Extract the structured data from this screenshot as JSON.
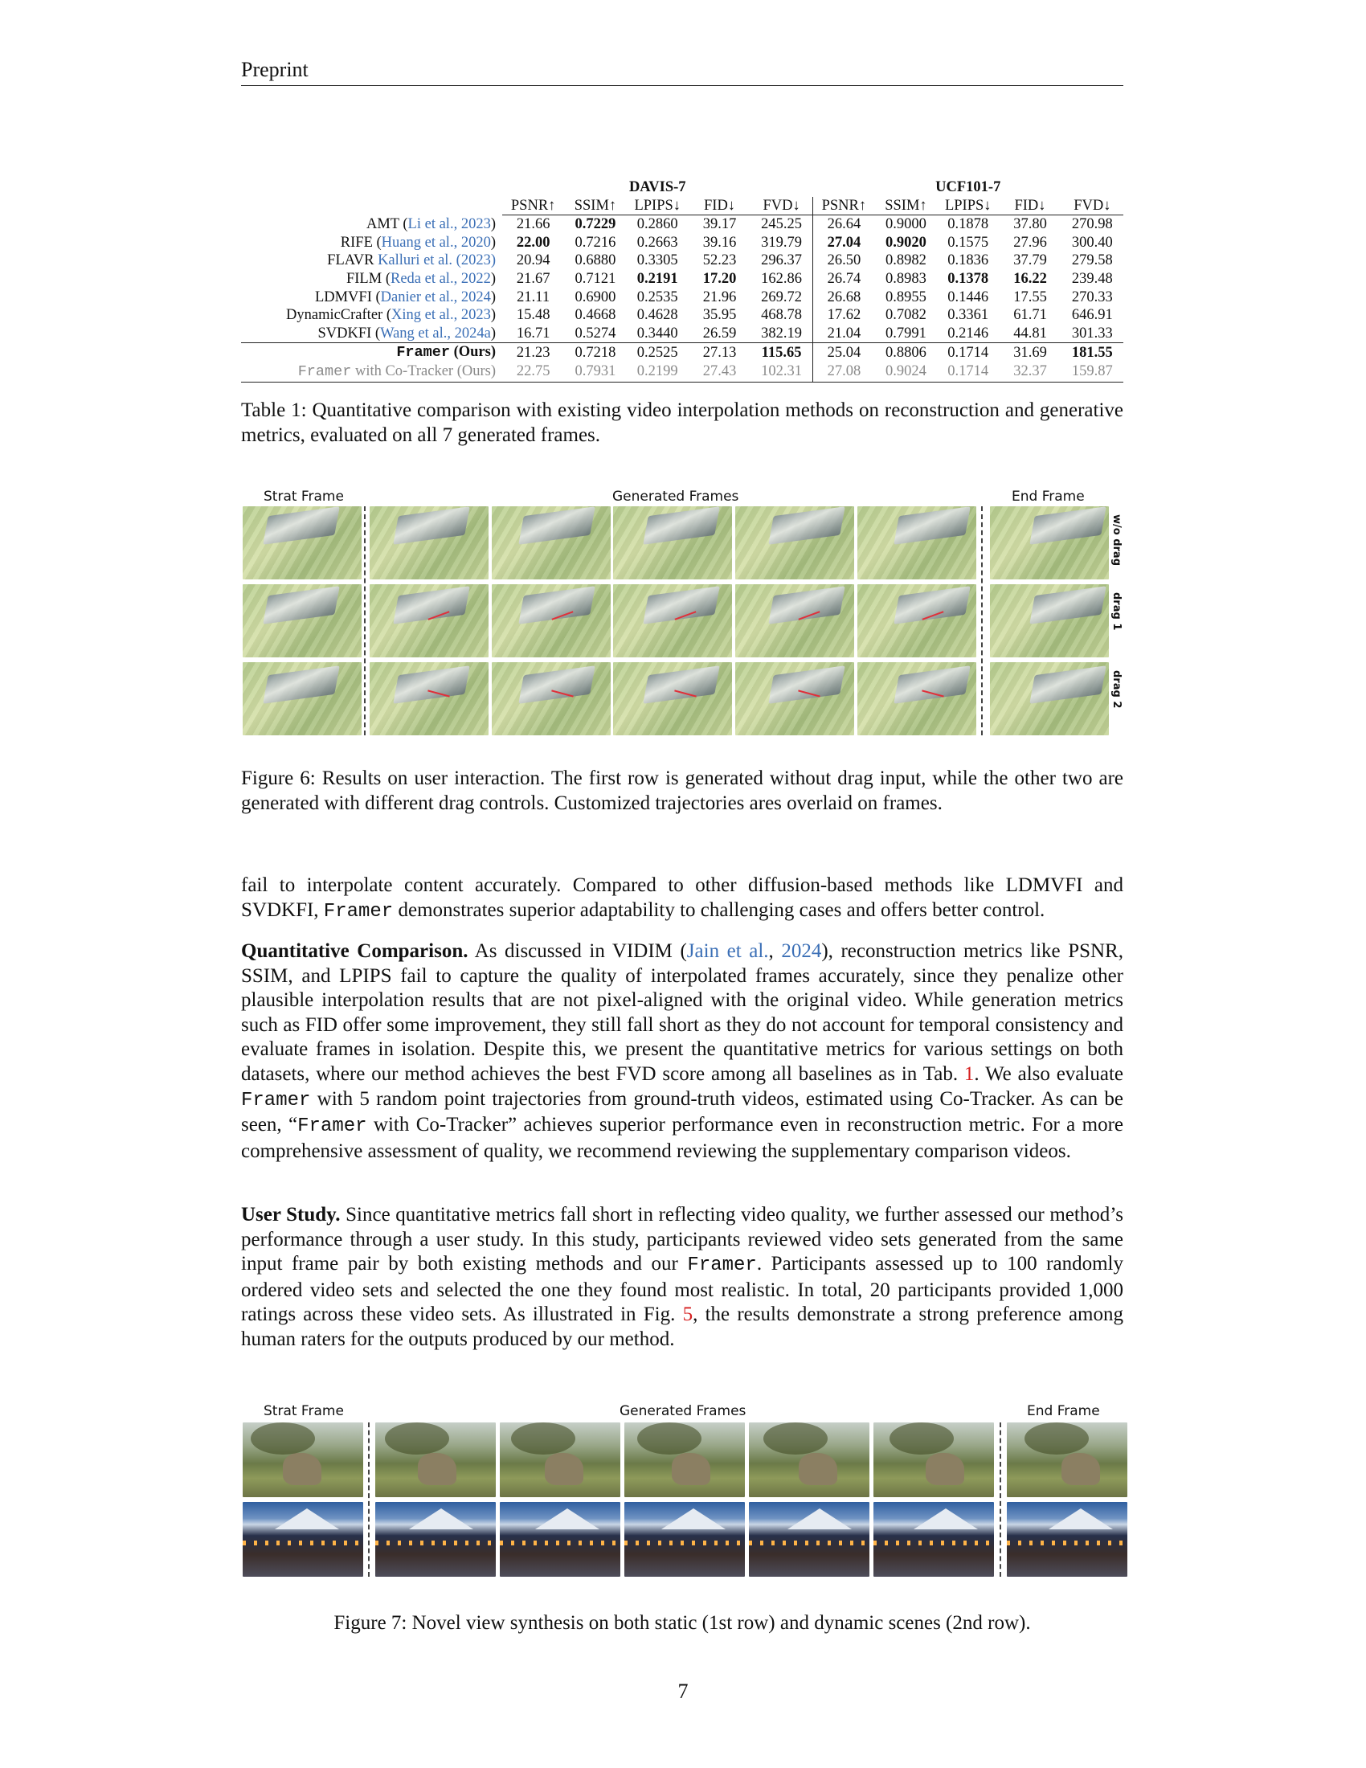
{
  "header": {
    "title": "Preprint"
  },
  "table1": {
    "groups": [
      "DAVIS-7",
      "UCF101-7"
    ],
    "metrics": [
      "PSNR↑",
      "SSIM↑",
      "LPIPS↓",
      "FID↓",
      "FVD↓"
    ],
    "rows": [
      {
        "name": "AMT",
        "cite_open": " (",
        "cite": "Li et al., 2023",
        "cite_close": ")",
        "vals": [
          "21.66",
          "0.7229",
          "0.2860",
          "39.17",
          "245.25",
          "26.64",
          "0.9000",
          "0.1878",
          "37.80",
          "270.98"
        ],
        "bold": [
          1
        ]
      },
      {
        "name": "RIFE",
        "cite_open": " (",
        "cite": "Huang et al., 2020",
        "cite_close": ")",
        "vals": [
          "22.00",
          "0.7216",
          "0.2663",
          "39.16",
          "319.79",
          "27.04",
          "0.9020",
          "0.1575",
          "27.96",
          "300.40"
        ],
        "bold": [
          0,
          5,
          6
        ]
      },
      {
        "name": "FLAVR",
        "cite_open": " ",
        "cite": "Kalluri et al. (2023)",
        "cite_close": "",
        "vals": [
          "20.94",
          "0.6880",
          "0.3305",
          "52.23",
          "296.37",
          "26.50",
          "0.8982",
          "0.1836",
          "37.79",
          "279.58"
        ],
        "bold": []
      },
      {
        "name": "FILM",
        "cite_open": " (",
        "cite": "Reda et al., 2022",
        "cite_close": ")",
        "vals": [
          "21.67",
          "0.7121",
          "0.2191",
          "17.20",
          "162.86",
          "26.74",
          "0.8983",
          "0.1378",
          "16.22",
          "239.48"
        ],
        "bold": [
          2,
          3,
          7,
          8
        ]
      },
      {
        "name": "LDMVFI",
        "cite_open": " (",
        "cite": "Danier et al., 2024",
        "cite_close": ")",
        "vals": [
          "21.11",
          "0.6900",
          "0.2535",
          "21.96",
          "269.72",
          "26.68",
          "0.8955",
          "0.1446",
          "17.55",
          "270.33"
        ],
        "bold": []
      },
      {
        "name": "DynamicCrafter",
        "cite_open": " (",
        "cite": "Xing et al., 2023",
        "cite_close": ")",
        "vals": [
          "15.48",
          "0.4668",
          "0.4628",
          "35.95",
          "468.78",
          "17.62",
          "0.7082",
          "0.3361",
          "61.71",
          "646.91"
        ],
        "bold": []
      },
      {
        "name": "SVDKFI",
        "cite_open": " (",
        "cite": "Wang et al., 2024a",
        "cite_close": ")",
        "vals": [
          "16.71",
          "0.5274",
          "0.3440",
          "26.59",
          "382.19",
          "21.04",
          "0.7991",
          "0.2146",
          "44.81",
          "301.33"
        ],
        "bold": []
      }
    ],
    "ours": {
      "mono": "Framer",
      "rest": " (Ours)",
      "vals": [
        "21.23",
        "0.7218",
        "0.2525",
        "27.13",
        "115.65",
        "25.04",
        "0.8806",
        "0.1714",
        "31.69",
        "181.55"
      ],
      "bold": [
        4,
        9
      ]
    },
    "ours_tracker": {
      "mono": "Framer",
      "rest": " with Co-Tracker (Ours)",
      "vals": [
        "22.75",
        "0.7931",
        "0.2199",
        "27.43",
        "102.31",
        "27.08",
        "0.9024",
        "0.1714",
        "32.37",
        "159.87"
      ]
    },
    "caption": "Table 1:  Quantitative comparison with existing video interpolation methods on reconstruction and generative metrics, evaluated on all 7 generated frames."
  },
  "figure6": {
    "labels": {
      "start": "Strat Frame",
      "generated": "Generated Frames",
      "end": "End Frame"
    },
    "row_labels": [
      "w/o drag",
      "drag 1",
      "drag 2"
    ],
    "caption": "Figure 6: Results on user interaction. The first row is generated without drag input, while the other two are generated with different drag controls. Customized trajectories ares overlaid on frames."
  },
  "body": {
    "p1": "fail to interpolate content accurately. Compared to other diffusion-based methods like LDMVFI and SVDKFI, ",
    "p1_mono": "Framer",
    "p1_tail": " demonstrates superior adaptability to challenging cases and offers better control.",
    "p2_head": "Quantitative Comparison.",
    "p2_a": "  As discussed in VIDIM (",
    "p2_cite": "Jain et al.",
    "p2_b": ", ",
    "p2_year": "2024",
    "p2_c": "), reconstruction metrics like PSNR, SSIM, and LPIPS fail to capture the quality of interpolated frames accurately, since they penalize other plausible interpolation results that are not pixel-aligned with the original video. While generation metrics such as FID offer some improvement, they still fall short as they do not account for temporal consistency and evaluate frames in isolation.  Despite this, we present the quantitative metrics for various settings on both datasets, where our method achieves the best FVD score among all baselines as in Tab. ",
    "p2_tab": "1",
    "p2_d": ". We also evaluate ",
    "p2_mono1": "Framer",
    "p2_e": " with 5 random point trajectories from ground-truth videos, estimated using Co-Tracker. As can be seen, “",
    "p2_mono2": "Framer",
    "p2_f": " with Co-Tracker” achieves superior performance even in reconstruction metric. For a more comprehensive assessment of quality, we recommend reviewing the supplementary comparison videos.",
    "p3_head": "User Study.",
    "p3_a": " Since quantitative metrics fall short in reflecting video quality, we further assessed our method’s performance through a user study. In this study, participants reviewed video sets generated from the same input frame pair by both existing methods and our ",
    "p3_mono": "Framer",
    "p3_b": ". Participants assessed up to 100 randomly ordered video sets and selected the one they found most realistic.  In total, 20 participants provided 1,000 ratings across these video sets.  As illustrated in Fig. ",
    "p3_fig": "5",
    "p3_c": ", the results demonstrate a strong preference among human raters for the outputs produced by our method."
  },
  "figure7": {
    "labels": {
      "start": "Strat Frame",
      "generated": "Generated Frames",
      "end": "End Frame"
    },
    "caption": "Figure 7: Novel view synthesis on both static (1st row) and dynamic scenes (2nd row)."
  },
  "page_number": "7",
  "colors": {
    "link": "#3b6fb6",
    "ref_red": "#d62020",
    "ruler": "#222222"
  }
}
